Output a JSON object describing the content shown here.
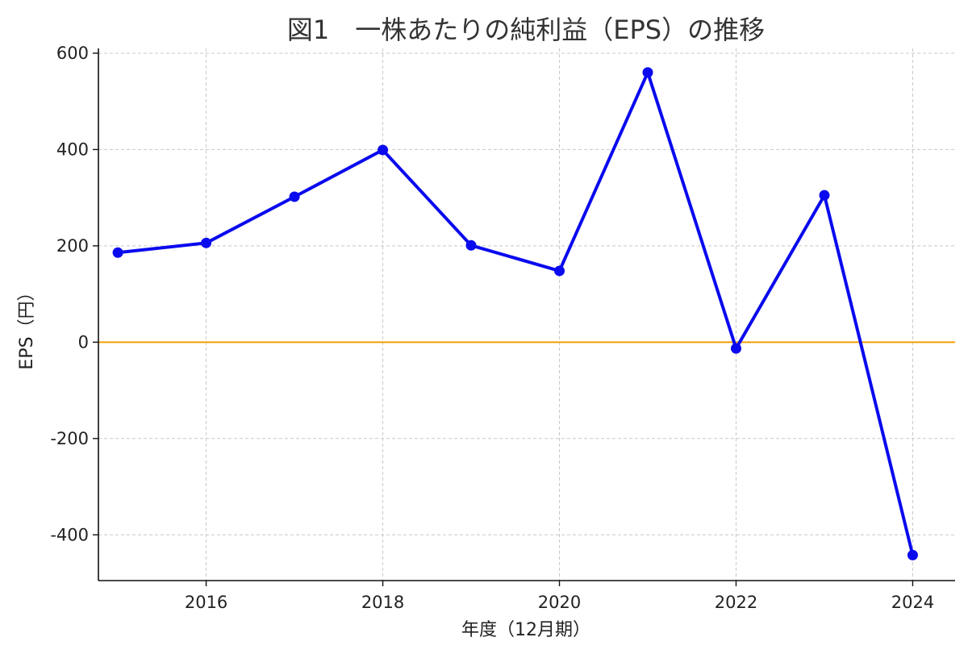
{
  "chart_data": {
    "type": "line",
    "title": "図1　一株あたりの純利益（EPS）の推移",
    "xlabel": "年度（12月期）",
    "ylabel": "EPS（円）",
    "xlim": [
      2014.78,
      2024.48
    ],
    "ylim": [
      -495,
      610
    ],
    "x_ticks": [
      2016,
      2018,
      2020,
      2022,
      2024
    ],
    "y_ticks": [
      -400,
      -200,
      0,
      200,
      400,
      600
    ],
    "grid": true,
    "reference_line": {
      "y": 0,
      "color": "#f0a000"
    },
    "series": [
      {
        "color": "#0a0aee",
        "x": [
          2015,
          2016,
          2017,
          2018,
          2019,
          2020,
          2021,
          2022,
          2023,
          2024
        ],
        "y": [
          186,
          206,
          302,
          399,
          201,
          148,
          560,
          -13,
          305,
          -442
        ]
      }
    ]
  }
}
